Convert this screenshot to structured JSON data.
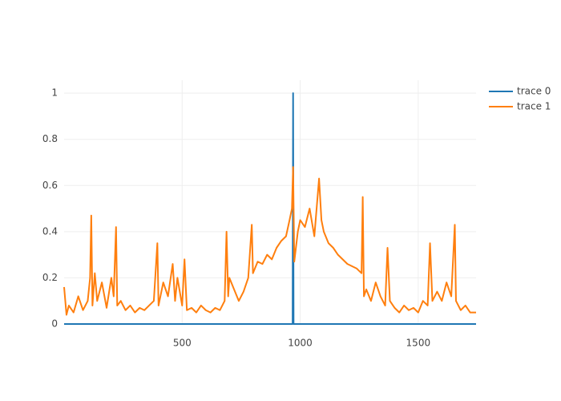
{
  "chart_data": {
    "type": "line",
    "series": [
      {
        "name": "trace 0",
        "color": "#1f77b4",
        "x": [
          0,
          968,
          970,
          972,
          1745
        ],
        "values": [
          0,
          0,
          1,
          0,
          0
        ]
      },
      {
        "name": "trace 1",
        "color": "#ff7f0e",
        "x": [
          0,
          10,
          20,
          40,
          60,
          80,
          100,
          110,
          115,
          120,
          130,
          140,
          160,
          180,
          200,
          210,
          220,
          225,
          240,
          260,
          280,
          300,
          320,
          340,
          360,
          380,
          395,
          400,
          420,
          440,
          460,
          470,
          480,
          500,
          510,
          520,
          540,
          560,
          580,
          600,
          620,
          640,
          660,
          680,
          688,
          695,
          700,
          720,
          740,
          760,
          780,
          795,
          800,
          820,
          840,
          860,
          880,
          900,
          920,
          940,
          955,
          965,
          970,
          975,
          990,
          1000,
          1020,
          1040,
          1060,
          1080,
          1090,
          1100,
          1120,
          1140,
          1160,
          1180,
          1200,
          1220,
          1240,
          1260,
          1265,
          1270,
          1280,
          1300,
          1320,
          1340,
          1360,
          1370,
          1380,
          1400,
          1420,
          1440,
          1460,
          1480,
          1500,
          1520,
          1540,
          1550,
          1560,
          1580,
          1600,
          1620,
          1640,
          1655,
          1660,
          1680,
          1700,
          1720,
          1745
        ],
        "values": [
          0.16,
          0.04,
          0.08,
          0.05,
          0.12,
          0.06,
          0.1,
          0.2,
          0.47,
          0.08,
          0.22,
          0.1,
          0.18,
          0.07,
          0.2,
          0.12,
          0.42,
          0.08,
          0.1,
          0.06,
          0.08,
          0.05,
          0.07,
          0.06,
          0.08,
          0.1,
          0.35,
          0.08,
          0.18,
          0.12,
          0.26,
          0.1,
          0.2,
          0.08,
          0.28,
          0.06,
          0.07,
          0.05,
          0.08,
          0.06,
          0.05,
          0.07,
          0.06,
          0.1,
          0.4,
          0.12,
          0.2,
          0.15,
          0.1,
          0.14,
          0.2,
          0.43,
          0.22,
          0.27,
          0.26,
          0.3,
          0.28,
          0.33,
          0.36,
          0.38,
          0.45,
          0.5,
          0.68,
          0.27,
          0.4,
          0.45,
          0.42,
          0.5,
          0.38,
          0.63,
          0.45,
          0.4,
          0.35,
          0.33,
          0.3,
          0.28,
          0.26,
          0.25,
          0.24,
          0.22,
          0.55,
          0.12,
          0.15,
          0.1,
          0.18,
          0.12,
          0.08,
          0.33,
          0.1,
          0.07,
          0.05,
          0.08,
          0.06,
          0.07,
          0.05,
          0.1,
          0.08,
          0.35,
          0.1,
          0.14,
          0.1,
          0.18,
          0.12,
          0.43,
          0.1,
          0.06,
          0.08,
          0.05,
          0.05
        ]
      }
    ],
    "xlim": [
      0,
      1745
    ],
    "xticks": [
      500,
      1000,
      1500
    ],
    "ylim": [
      0,
      1.056
    ],
    "yticks": [
      0,
      0.2,
      0.4,
      0.6,
      0.8,
      1
    ],
    "grid": true,
    "legend": "right"
  }
}
